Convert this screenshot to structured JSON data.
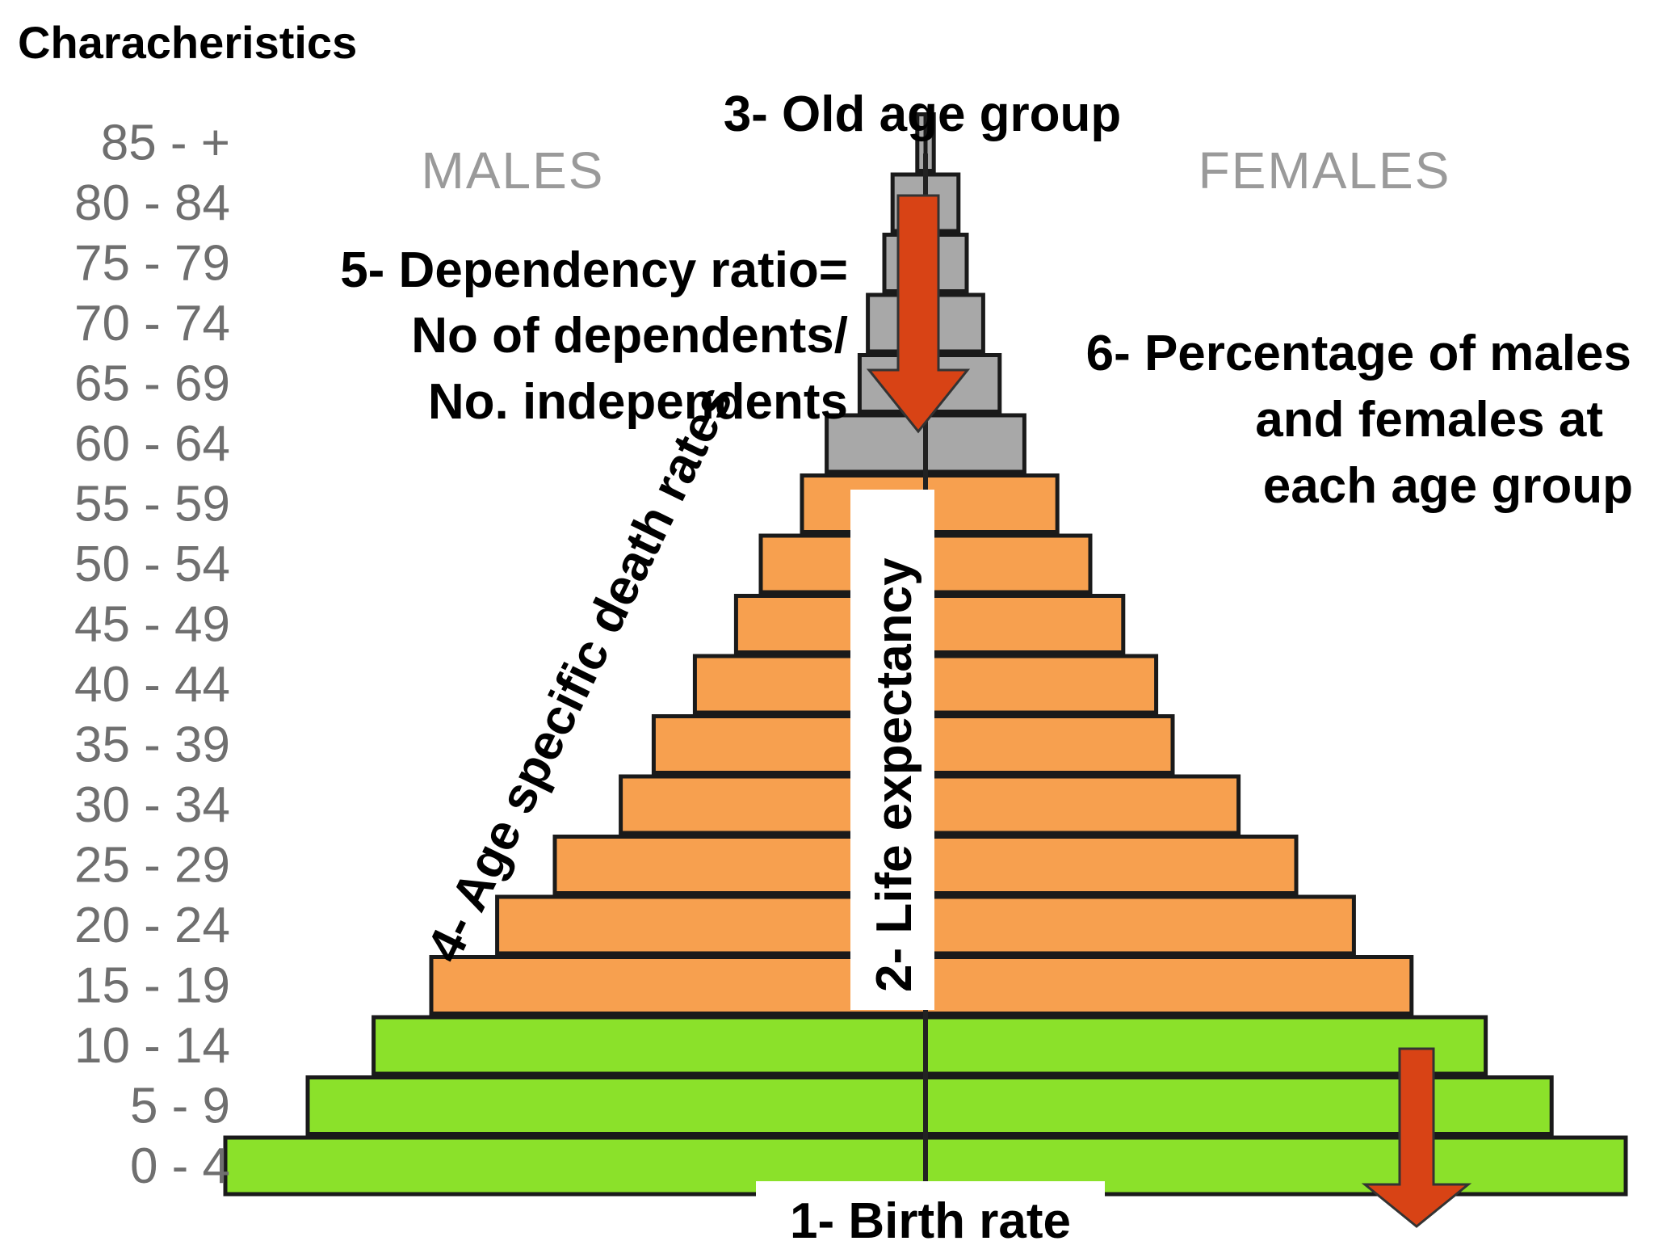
{
  "page_title": "Characheristics",
  "chart_data": {
    "type": "bar",
    "subtype": "population-pyramid",
    "categories": [
      "0 - 4",
      "5 - 9",
      "10 - 14",
      "15 - 19",
      "20 - 24",
      "25 - 29",
      "30 - 34",
      "35 - 39",
      "40 - 44",
      "45 - 49",
      "50 - 54",
      "55 - 59",
      "60 - 64",
      "65 - 69",
      "70 - 74",
      "75 - 79",
      "80 - 84",
      "85 - +"
    ],
    "series": [
      {
        "name": "MALES",
        "values": [
          85,
          75,
          67,
          60,
          52,
          45,
          37,
          33,
          28,
          23,
          20,
          15,
          12,
          8,
          7,
          5,
          4,
          1
        ]
      },
      {
        "name": "FEMALES",
        "values": [
          85,
          76,
          68,
          59,
          52,
          45,
          38,
          30,
          28,
          24,
          20,
          16,
          12,
          9,
          7,
          5,
          4,
          1
        ]
      }
    ],
    "bar_colors": {
      "young": "#8BE12A",
      "working": "#F7A04F",
      "old": "#A8A8A8",
      "outline": "#1a1a1a",
      "arrow": "#D84315"
    },
    "groups": {
      "young": [
        0,
        2
      ],
      "working": [
        3,
        11
      ],
      "old": [
        12,
        17
      ]
    },
    "annotations": {
      "birth_rate": "1- Birth rate",
      "life_expectancy": "2- Life expectancy",
      "old_age_group": "3- Old age group",
      "age_specific_death": "4- Age specific death rates",
      "dependency": [
        "5- Dependency ratio=",
        "No of dependents/",
        "No. independents"
      ],
      "percentage": [
        "6- Percentage of males",
        "and females at",
        "each age group"
      ]
    }
  }
}
